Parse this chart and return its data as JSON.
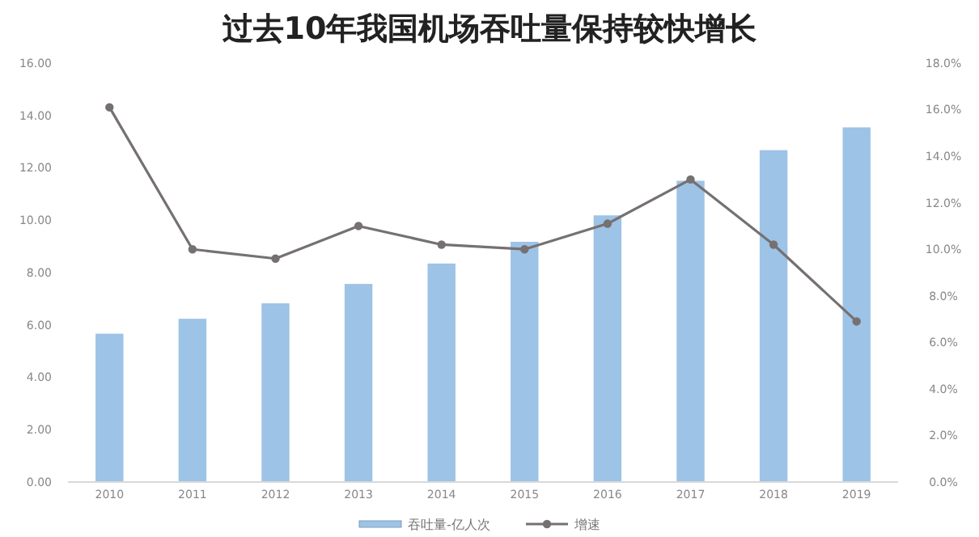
{
  "chart_data": {
    "type": "bar",
    "title": "过去10年我国机场吞吐量保持较快增长",
    "categories": [
      "2010",
      "2011",
      "2012",
      "2013",
      "2014",
      "2015",
      "2016",
      "2017",
      "2018",
      "2019"
    ],
    "series": [
      {
        "name": "吞吐量-亿人次",
        "color": "#9dc3e6",
        "values": [
          5.64,
          6.21,
          6.8,
          7.54,
          8.32,
          9.15,
          10.16,
          11.48,
          12.65,
          13.52
        ]
      },
      {
        "name": "增速",
        "type": "line",
        "axis": "y2",
        "color": "#767171",
        "marker": "circle",
        "values": [
          16.1,
          10.0,
          9.6,
          11.0,
          10.2,
          10.0,
          11.1,
          13.0,
          10.2,
          6.9
        ]
      }
    ],
    "ylim": [
      0,
      16
    ],
    "yticks": [
      {
        "value": 0,
        "label": "0.00"
      },
      {
        "value": 2,
        "label": "2.00"
      },
      {
        "value": 4,
        "label": "4.00"
      },
      {
        "value": 6,
        "label": "6.00"
      },
      {
        "value": 8,
        "label": "8.00"
      },
      {
        "value": 10,
        "label": "10.00"
      },
      {
        "value": 12,
        "label": "12.00"
      },
      {
        "value": 14,
        "label": "14.00"
      },
      {
        "value": 16,
        "label": "16.00"
      }
    ],
    "y2lim": [
      0,
      18
    ],
    "y2ticks": [
      {
        "value": 0,
        "label": "0.0%"
      },
      {
        "value": 2,
        "label": "2.0%"
      },
      {
        "value": 4,
        "label": "4.0%"
      },
      {
        "value": 6,
        "label": "6.0%"
      },
      {
        "value": 8,
        "label": "8.0%"
      },
      {
        "value": 10,
        "label": "10.0%"
      },
      {
        "value": 12,
        "label": "12.0%"
      },
      {
        "value": 14,
        "label": "14.0%"
      },
      {
        "value": 16,
        "label": "16.0%"
      },
      {
        "value": 18,
        "label": "18.0%"
      }
    ],
    "legend": "bottom",
    "grid": false
  }
}
